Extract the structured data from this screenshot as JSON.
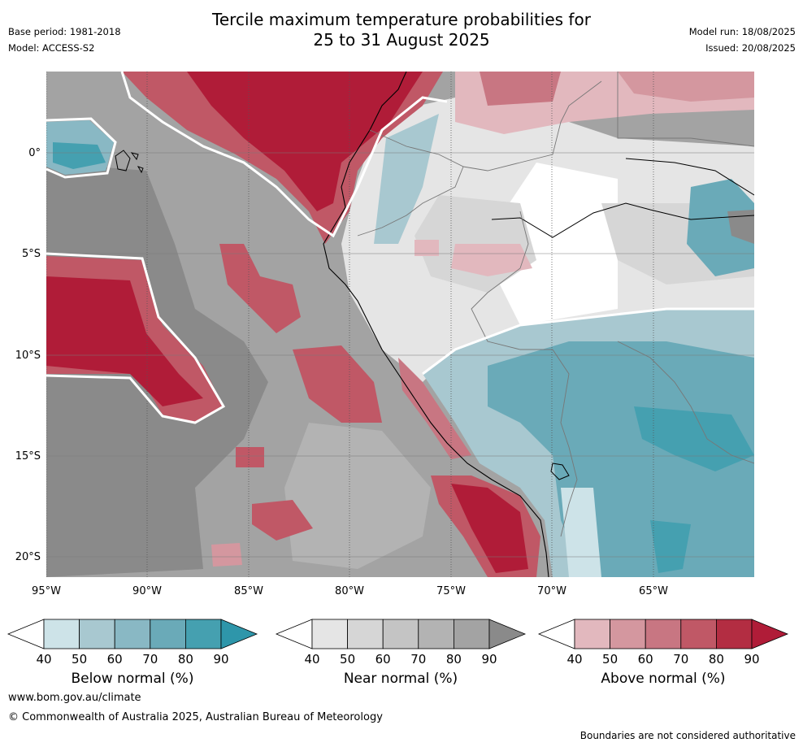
{
  "header": {
    "title_line1": "Tercile maximum temperature probabilities for",
    "title_line2": "25 to 31 August 2025",
    "base_period": "Base period: 1981-2018",
    "model": "Model: ACCESS-S2",
    "model_run": "Model run: 18/08/2025",
    "issued": "Issued: 20/08/2025"
  },
  "map": {
    "region": "South America west coast and eastern Pacific",
    "lon_range": [
      -95,
      -60
    ],
    "lat_range": [
      -21,
      4
    ],
    "y_ticks": [
      "0°",
      "5°S",
      "10°S",
      "15°S",
      "20°S"
    ],
    "x_ticks": [
      "95°W",
      "90°W",
      "85°W",
      "80°W",
      "75°W",
      "70°W",
      "65°W"
    ],
    "gridlines": true
  },
  "colorbars": [
    {
      "label": "Below normal (%)",
      "ticks": [
        "40",
        "50",
        "60",
        "70",
        "80",
        "90"
      ],
      "colors": [
        "#cde3e8",
        "#a8c8d0",
        "#89b8c4",
        "#6aaab8",
        "#45a0b0",
        "#2e96aa"
      ]
    },
    {
      "label": "Near normal (%)",
      "ticks": [
        "40",
        "50",
        "60",
        "70",
        "80",
        "90"
      ],
      "colors": [
        "#e5e5e5",
        "#d6d6d6",
        "#c4c4c4",
        "#b3b3b3",
        "#a3a3a3",
        "#8a8a8a"
      ]
    },
    {
      "label": "Above normal (%)",
      "ticks": [
        "40",
        "50",
        "60",
        "70",
        "80",
        "90"
      ],
      "colors": [
        "#e2b8be",
        "#d4979f",
        "#c87682",
        "#c05866",
        "#b32d42",
        "#b01c38"
      ]
    }
  ],
  "footer": {
    "url": "www.bom.gov.au/climate",
    "copyright": "© Commonwealth of Australia 2025, Australian Bureau of Meteorology",
    "disclaimer": "Boundaries are not considered authoritative"
  }
}
